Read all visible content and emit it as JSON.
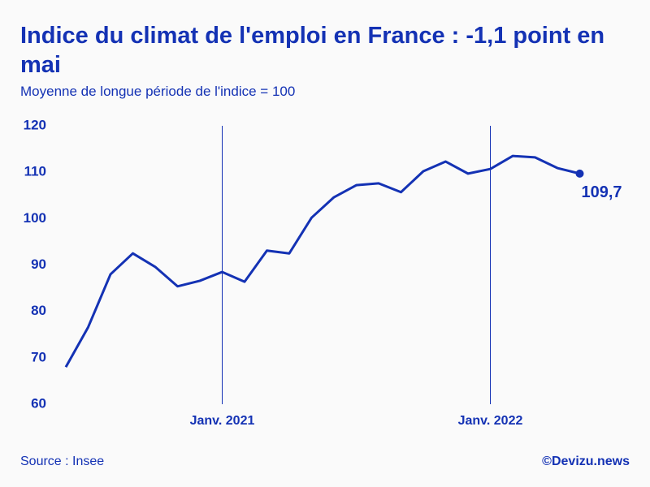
{
  "chart_data": {
    "type": "line",
    "title": "Indice du climat de l'emploi en France : -1,1 point en mai",
    "subtitle": "Moyenne de longue période de l'indice = 100",
    "source": "Source : Insee",
    "credit": "©Devizu.news",
    "categories": [
      null,
      null,
      null,
      null,
      null,
      null,
      null,
      "Janv. 2021",
      null,
      null,
      null,
      null,
      null,
      null,
      null,
      null,
      null,
      null,
      null,
      "Janv. 2022",
      null,
      null,
      null,
      null
    ],
    "values": [
      68,
      76.6,
      88.0,
      92.5,
      89.6,
      85.4,
      86.6,
      88.5,
      86.4,
      93.1,
      92.5,
      100.2,
      104.6,
      107.2,
      107.6,
      105.7,
      110.2,
      112.3,
      109.7,
      110.7,
      113.5,
      113.2,
      110.9,
      109.7
    ],
    "value_labels": [
      null,
      null,
      null,
      null,
      null,
      null,
      null,
      null,
      null,
      null,
      null,
      null,
      null,
      null,
      null,
      null,
      null,
      null,
      null,
      null,
      null,
      null,
      null,
      "109,7"
    ],
    "color": "#1432b4",
    "ylim": [
      60,
      120
    ],
    "yticks": [
      60,
      70,
      80,
      90,
      100,
      110,
      120
    ],
    "grid": false
  }
}
